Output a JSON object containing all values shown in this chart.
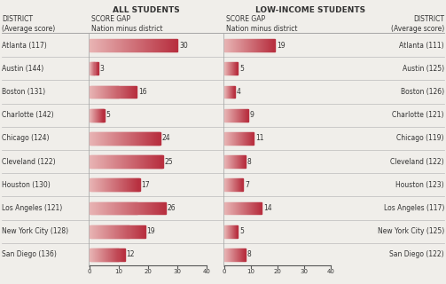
{
  "districts": [
    "Atlanta",
    "Austin",
    "Boston",
    "Charlotte",
    "Chicago",
    "Cleveland",
    "Houston",
    "Los Angeles",
    "New York City",
    "San Diego"
  ],
  "left_scores": [
    117,
    144,
    131,
    142,
    124,
    122,
    130,
    121,
    128,
    136
  ],
  "right_scores": [
    111,
    125,
    126,
    121,
    119,
    122,
    123,
    117,
    125,
    122
  ],
  "all_students_gaps": [
    30,
    3,
    16,
    5,
    24,
    25,
    17,
    26,
    19,
    12
  ],
  "low_income_gaps": [
    19,
    5,
    4,
    9,
    11,
    8,
    7,
    14,
    5,
    8
  ],
  "bar_color_light": "#e8b4b4",
  "bar_color_dark": "#b83040",
  "line_color": "#bbbbbb",
  "text_color": "#333333",
  "bg_color": "#f0eeea",
  "header_all": "ALL STUDENTS",
  "header_low": "LOW-INCOME STUDENTS",
  "axis_max": 40,
  "axis_ticks": [
    0,
    10,
    20,
    30,
    40
  ]
}
